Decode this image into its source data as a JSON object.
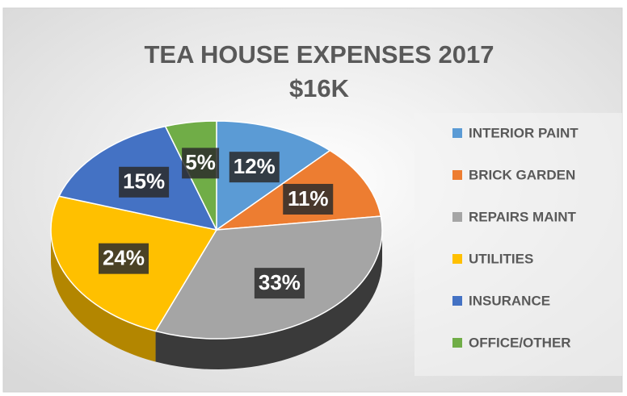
{
  "chart_data": {
    "type": "pie3d",
    "title": "TEA HOUSE EXPENSES 2017",
    "subtitle": "$16K",
    "categories": [
      "INTERIOR PAINT",
      "BRICK GARDEN",
      "REPAIRS MAINT",
      "UTILITIES",
      "INSURANCE",
      "OFFICE/OTHER"
    ],
    "values": [
      12,
      11,
      33,
      24,
      15,
      5
    ],
    "value_labels": [
      "12%",
      "11%",
      "33%",
      "24%",
      "15%",
      "5%"
    ],
    "colors": [
      "#5b9bd5",
      "#ed7d31",
      "#a5a5a5",
      "#ffc000",
      "#4472c4",
      "#70ad47"
    ],
    "legend": "right"
  }
}
